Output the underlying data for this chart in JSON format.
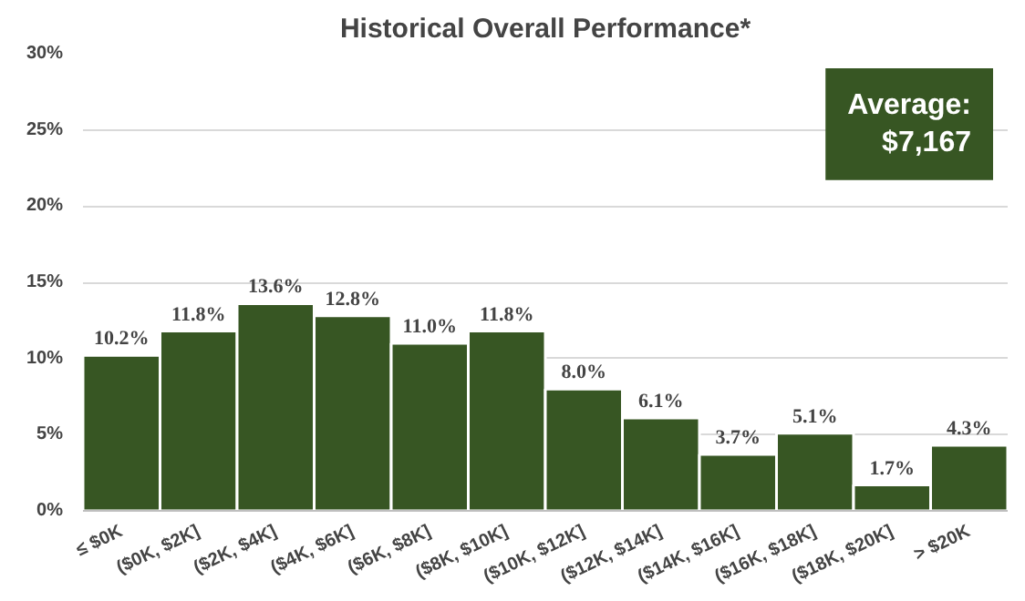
{
  "chart_data": {
    "type": "bar",
    "title": "Historical Overall Performance*",
    "categories": [
      "≤ $0K",
      "($0K, $2K]",
      "($2K, $4K]",
      "($4K, $6K]",
      "($6K, $8K]",
      "($8K, $10K]",
      "($10K, $12K]",
      "($12K, $14K]",
      "($14K, $16K]",
      "($16K, $18K]",
      "($18K, $20K]",
      "> $20K"
    ],
    "values": [
      10.2,
      11.8,
      13.6,
      12.8,
      11.0,
      11.8,
      8.0,
      6.1,
      3.7,
      5.1,
      1.7,
      4.3
    ],
    "value_labels": [
      "10.2%",
      "11.8%",
      "13.6%",
      "12.8%",
      "11.0%",
      "11.8%",
      "8.0%",
      "6.1%",
      "3.7%",
      "5.1%",
      "1.7%",
      "4.3%"
    ],
    "color": "#375623",
    "ylim": [
      0,
      30
    ],
    "yticks": [
      {
        "value": 0,
        "label": "0%"
      },
      {
        "value": 5,
        "label": "5%"
      },
      {
        "value": 10,
        "label": "10%"
      },
      {
        "value": 15,
        "label": "15%"
      },
      {
        "value": 20,
        "label": "20%"
      },
      {
        "value": 25,
        "label": "25%"
      },
      {
        "value": 30,
        "label": "30%"
      }
    ],
    "grid": "y",
    "annotations": [
      "Average:\n$7,167"
    ]
  }
}
